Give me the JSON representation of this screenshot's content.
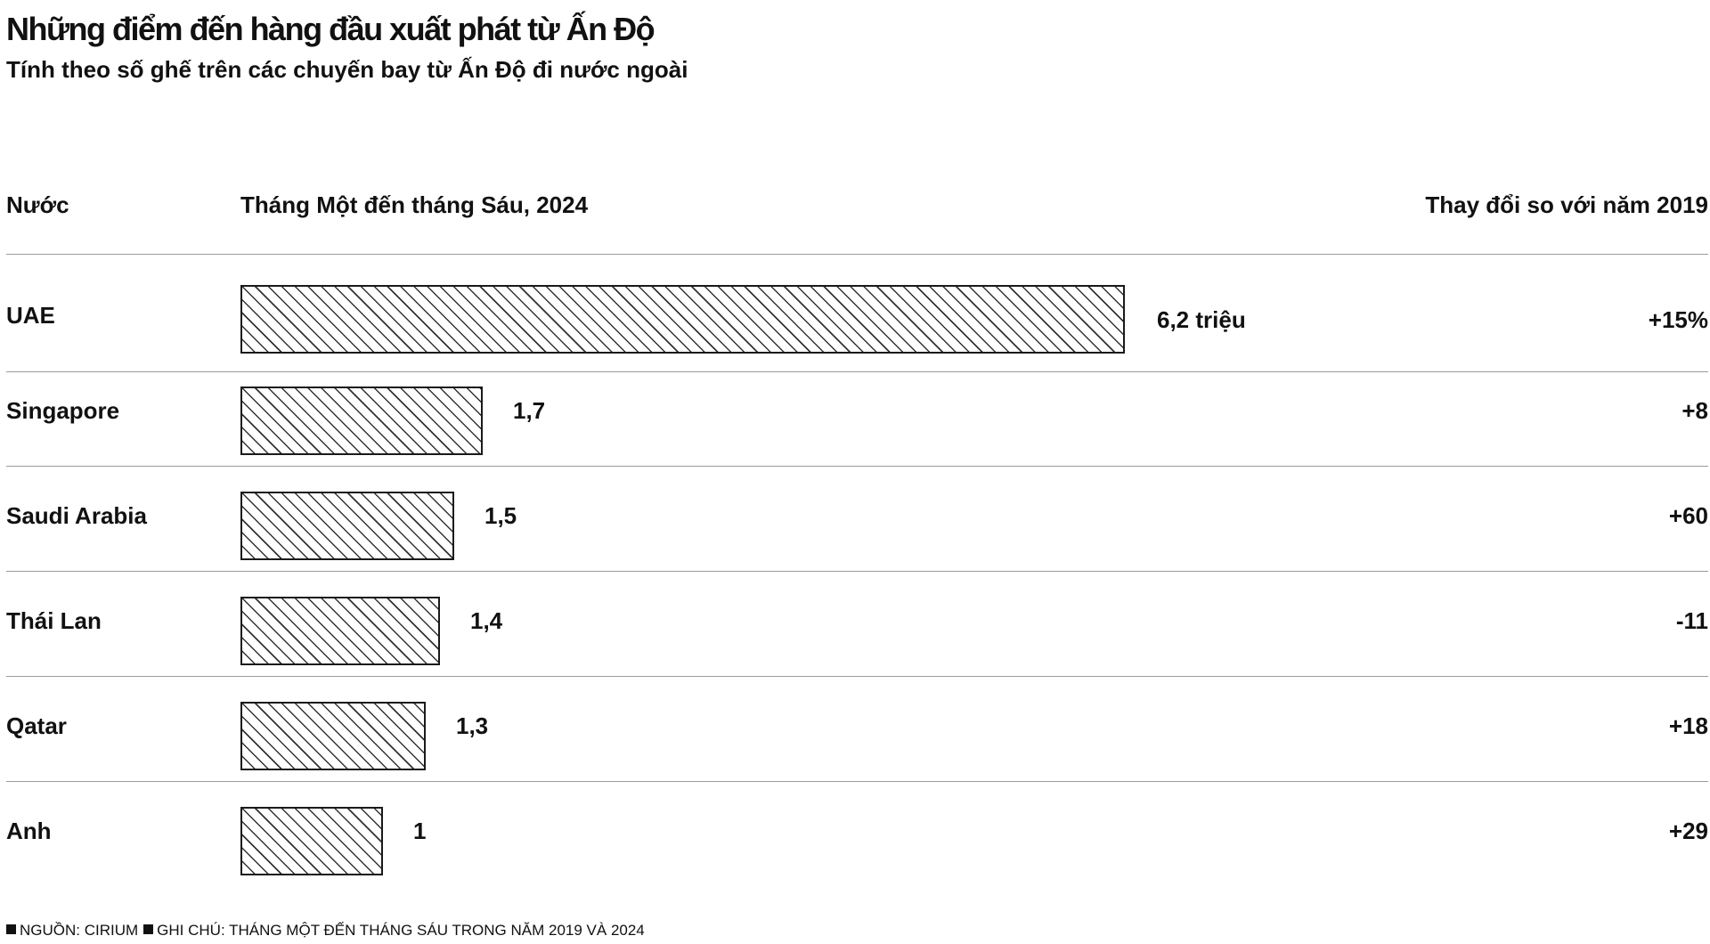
{
  "title": "Những điểm đến hàng đầu xuất phát từ Ấn Độ",
  "subtitle": "Tính theo số ghế trên các chuyến bay từ Ấn Độ đi nước ngoài",
  "headers": {
    "country": "Nước",
    "seats": "Tháng Một đến tháng Sáu, 2024",
    "change": "Thay đổi so với năm 2019"
  },
  "footnote": {
    "source": "NGUỒN: CIRIUM",
    "note": "GHI CHÚ: THÁNG MỘT ĐẾN THÁNG SÁU TRONG NĂM 2019 VÀ 2024"
  },
  "chart_data": {
    "type": "bar",
    "orientation": "horizontal",
    "title": "Những điểm đến hàng đầu xuất phát từ Ấn Độ",
    "subtitle": "Tính theo số ghế trên các chuyến bay từ Ấn Độ đi nước ngoài",
    "categories": [
      "UAE",
      "Singapore",
      "Saudi Arabia",
      "Thái Lan",
      "Qatar",
      "Anh"
    ],
    "values": [
      6.2,
      1.7,
      1.5,
      1.4,
      1.3,
      1
    ],
    "value_labels": [
      "6,2 triệu",
      "1,7",
      "1,5",
      "1,4",
      "1,3",
      "1"
    ],
    "change_labels": [
      "+15%",
      "+8",
      "+60",
      "-11",
      "+18",
      "+29"
    ],
    "change_values": [
      15,
      8,
      60,
      -11,
      18,
      29
    ],
    "xlim": [
      0,
      6.2
    ],
    "grid": false,
    "legend": "none"
  }
}
